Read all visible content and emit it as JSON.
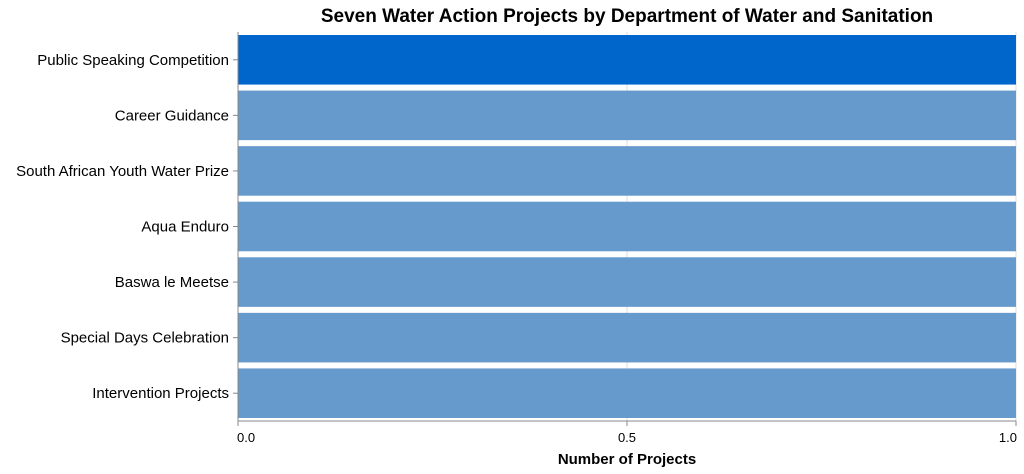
{
  "chart_data": {
    "type": "bar",
    "orientation": "horizontal",
    "title": "Seven Water Action Projects by Department of Water and Sanitation",
    "xlabel": "Number of Projects",
    "ylabel": "",
    "categories": [
      "Public Speaking Competition",
      "Career Guidance",
      "South African Youth Water Prize",
      "Aqua Enduro",
      "Baswa le Meetse",
      "Special Days Celebration",
      "Intervention Projects"
    ],
    "values": [
      1,
      1,
      1,
      1,
      1,
      1,
      1
    ],
    "highlighted_category": "Public Speaking Competition",
    "xlim": [
      0,
      1
    ],
    "x_ticks": [
      0,
      0.5,
      1
    ],
    "x_tick_labels": [
      "0.0",
      "0.5",
      "1.0"
    ],
    "grid": true,
    "colors": {
      "highlight": "#0066cc",
      "bar": "#6699cc",
      "grid": "#dddddd",
      "axis": "#888888"
    }
  }
}
